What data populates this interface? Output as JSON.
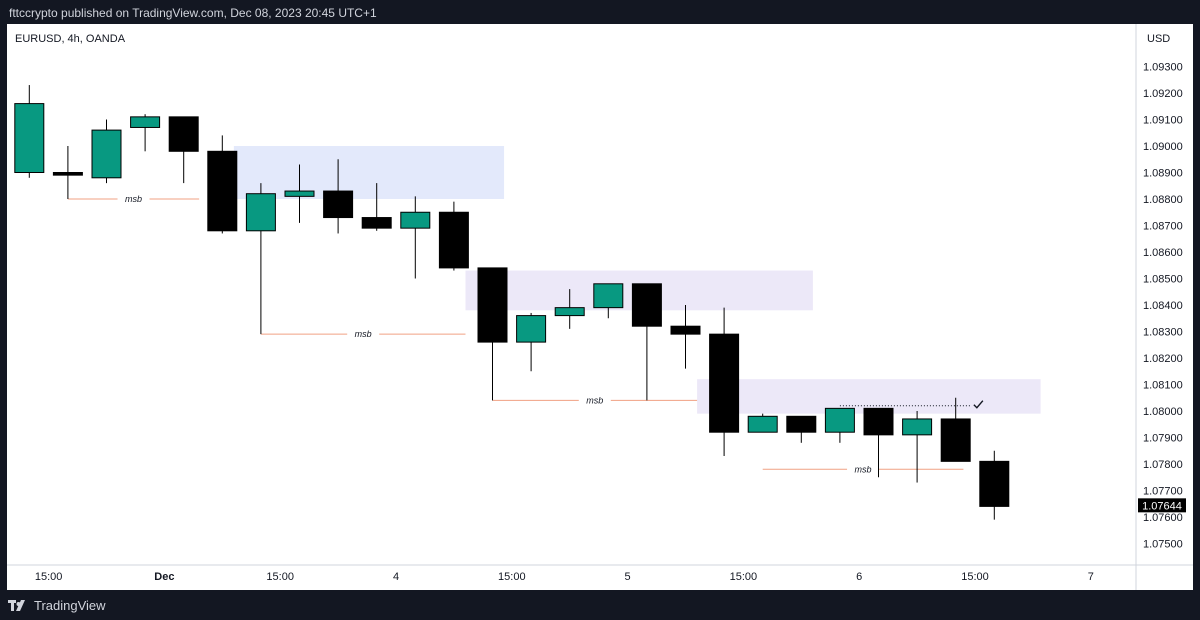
{
  "header": {
    "publish_text": "fttccrypto published on TradingView.com, Dec 08, 2023 20:45 UTC+1"
  },
  "footer": {
    "brand": "TradingView",
    "brand_icon": "tradingview-logo-icon"
  },
  "colors": {
    "bull": "#089981",
    "bear": "#000000",
    "zone_blue": "#e3e9fb",
    "zone_purple": "#ece8f8",
    "msb_line": "#f0a183"
  },
  "chart_data": {
    "type": "candlestick",
    "symbol": "EURUSD, 4h, OANDA",
    "currency": "USD",
    "ylim": [
      1.0745,
      1.0935
    ],
    "y_ticks": [
      "1.09300",
      "1.09200",
      "1.09100",
      "1.09000",
      "1.08900",
      "1.08800",
      "1.08700",
      "1.08600",
      "1.08500",
      "1.08400",
      "1.08300",
      "1.08200",
      "1.08100",
      "1.08000",
      "1.07900",
      "1.07800",
      "1.07700",
      "1.07600",
      "1.07500"
    ],
    "x_labels": [
      {
        "label": "15:00",
        "index": 0.5
      },
      {
        "label": "Dec",
        "index": 3.5
      },
      {
        "label": "15:00",
        "index": 6.5
      },
      {
        "label": "4",
        "index": 9.5
      },
      {
        "label": "15:00",
        "index": 12.5
      },
      {
        "label": "5",
        "index": 15.5
      },
      {
        "label": "15:00",
        "index": 18.5
      },
      {
        "label": "6",
        "index": 21.5
      },
      {
        "label": "15:00",
        "index": 24.5
      },
      {
        "label": "7",
        "index": 27.5
      }
    ],
    "last_price": "1.07644",
    "candles": [
      {
        "o": 1.089,
        "h": 1.0923,
        "l": 1.0888,
        "c": 1.0916
      },
      {
        "o": 1.089,
        "h": 1.09,
        "l": 1.088,
        "c": 1.0889
      },
      {
        "o": 1.0888,
        "h": 1.091,
        "l": 1.0886,
        "c": 1.0906
      },
      {
        "o": 1.0907,
        "h": 1.0912,
        "l": 1.0898,
        "c": 1.0911
      },
      {
        "o": 1.0911,
        "h": 1.0911,
        "l": 1.0886,
        "c": 1.0898
      },
      {
        "o": 1.0898,
        "h": 1.0904,
        "l": 1.0867,
        "c": 1.0868
      },
      {
        "o": 1.0868,
        "h": 1.0886,
        "l": 1.0829,
        "c": 1.0882
      },
      {
        "o": 1.0881,
        "h": 1.0893,
        "l": 1.0871,
        "c": 1.0883
      },
      {
        "o": 1.0883,
        "h": 1.0895,
        "l": 1.0867,
        "c": 1.0873
      },
      {
        "o": 1.0873,
        "h": 1.0886,
        "l": 1.0868,
        "c": 1.0869
      },
      {
        "o": 1.0869,
        "h": 1.0881,
        "l": 1.085,
        "c": 1.0875
      },
      {
        "o": 1.0875,
        "h": 1.0879,
        "l": 1.0853,
        "c": 1.0854
      },
      {
        "o": 1.0854,
        "h": 1.0854,
        "l": 1.0804,
        "c": 1.0826
      },
      {
        "o": 1.0826,
        "h": 1.0837,
        "l": 1.0815,
        "c": 1.0836
      },
      {
        "o": 1.0836,
        "h": 1.0846,
        "l": 1.0831,
        "c": 1.0839
      },
      {
        "o": 1.0839,
        "h": 1.0848,
        "l": 1.0835,
        "c": 1.0848
      },
      {
        "o": 1.0848,
        "h": 1.0848,
        "l": 1.0804,
        "c": 1.0832
      },
      {
        "o": 1.0832,
        "h": 1.084,
        "l": 1.0816,
        "c": 1.0829
      },
      {
        "o": 1.0829,
        "h": 1.0839,
        "l": 1.0783,
        "c": 1.0792
      },
      {
        "o": 1.0792,
        "h": 1.0799,
        "l": 1.0792,
        "c": 1.0798
      },
      {
        "o": 1.0798,
        "h": 1.0798,
        "l": 1.0788,
        "c": 1.0792
      },
      {
        "o": 1.0792,
        "h": 1.0801,
        "l": 1.0788,
        "c": 1.0801
      },
      {
        "o": 1.0801,
        "h": 1.0801,
        "l": 1.0775,
        "c": 1.0791
      },
      {
        "o": 1.0791,
        "h": 1.08,
        "l": 1.0773,
        "c": 1.0797
      },
      {
        "o": 1.0797,
        "h": 1.0805,
        "l": 1.0781,
        "c": 1.0781
      },
      {
        "o": 1.0781,
        "h": 1.0785,
        "l": 1.0759,
        "c": 1.0764
      }
    ],
    "zones": [
      {
        "color": "zone_blue",
        "x0": 5.3,
        "x1": 12.3,
        "y0": 1.088,
        "y1": 1.09
      },
      {
        "color": "zone_purple",
        "x0": 11.3,
        "x1": 20.3,
        "y0": 1.0838,
        "y1": 1.0853
      },
      {
        "color": "zone_purple",
        "x0": 17.3,
        "x1": 26.2,
        "y0": 1.0799,
        "y1": 1.0812
      }
    ],
    "msb_lines": [
      {
        "label": "msb",
        "y": 1.088,
        "x0": 1.0,
        "x1": 4.4
      },
      {
        "label": "msb",
        "y": 1.0829,
        "x0": 6.0,
        "x1": 11.3
      },
      {
        "label": "msb",
        "y": 1.0804,
        "x0": 12.0,
        "x1": 17.3
      },
      {
        "label": "msb",
        "y": 1.0778,
        "x0": 19.0,
        "x1": 24.2
      }
    ],
    "target_marker": {
      "y": 1.0802,
      "x0": 21.0,
      "x1": 24.6
    }
  }
}
